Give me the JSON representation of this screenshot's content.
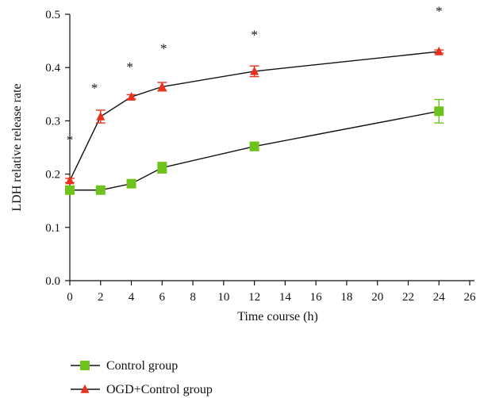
{
  "chart_data": {
    "type": "line",
    "xlabel": "Time course (h)",
    "ylabel": "LDH relative release rate",
    "xlim": [
      0,
      26
    ],
    "ylim": [
      0,
      0.5
    ],
    "x_ticks": [
      "0",
      "2",
      "4",
      "6",
      "8",
      "10",
      "12",
      "14",
      "16",
      "18",
      "20",
      "22",
      "24",
      "26"
    ],
    "y_ticks": [
      "0.0",
      "0.1",
      "0.2",
      "0.3",
      "0.4",
      "0.5"
    ],
    "x": [
      0,
      2,
      4,
      6,
      12,
      24
    ],
    "series": [
      {
        "name": "Control group",
        "marker": "square",
        "color": "#6ec21c",
        "values": [
          0.17,
          0.17,
          0.182,
          0.212,
          0.252,
          0.318
        ],
        "errors": [
          0.005,
          0.004,
          0.005,
          0.01,
          0.008,
          0.022
        ]
      },
      {
        "name": "OGD+Control group",
        "marker": "triangle",
        "color": "#e8321e",
        "values": [
          0.188,
          0.308,
          0.345,
          0.364,
          0.393,
          0.43
        ],
        "errors": [
          0.004,
          0.012,
          0.004,
          0.008,
          0.01,
          0.003
        ]
      }
    ],
    "annotations": [
      {
        "text": "*",
        "x": 0,
        "y": 0.268
      },
      {
        "text": "*",
        "x": 1.6,
        "y": 0.365
      },
      {
        "text": "*",
        "x": 3.9,
        "y": 0.405
      },
      {
        "text": "*",
        "x": 6.1,
        "y": 0.44
      },
      {
        "text": "*",
        "x": 12.0,
        "y": 0.465
      },
      {
        "text": "*",
        "x": 24.0,
        "y": 0.51
      }
    ],
    "legend_position": "bottom-left",
    "grid": false
  }
}
